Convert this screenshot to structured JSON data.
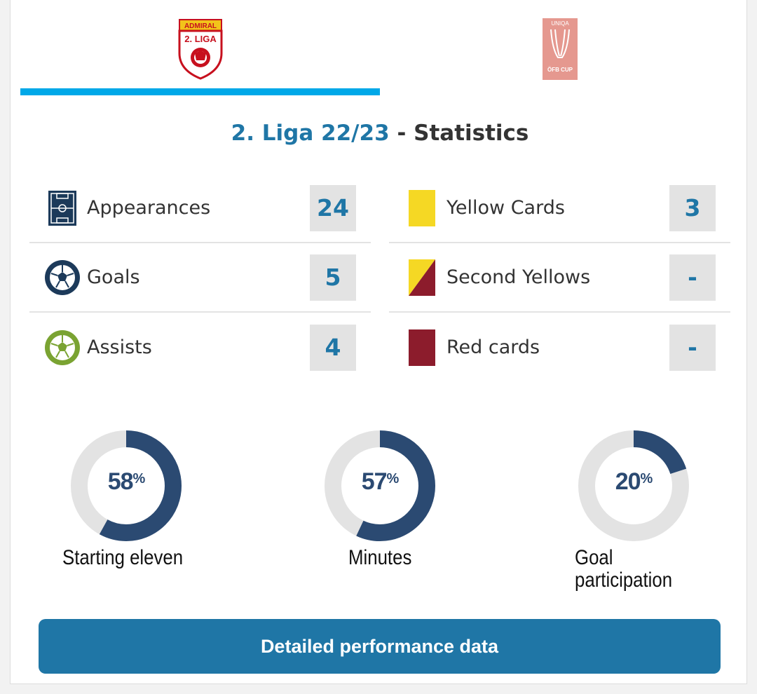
{
  "tabs": [
    {
      "name": "2. Liga",
      "logo_text_top": "ADMIRAL",
      "logo_text_main": "2. LIGA",
      "active": true
    },
    {
      "name": "UNIQA ÖFB Cup",
      "logo_text_top": "UNIQA",
      "logo_text_main": "ÖFB CUP",
      "active": false
    }
  ],
  "title": {
    "competition": "2. Liga 22/23",
    "separator": "-",
    "word": "Statistics"
  },
  "stats_left": [
    {
      "label": "Appearances",
      "value": "24",
      "icon": "pitch-icon"
    },
    {
      "label": "Goals",
      "value": "5",
      "icon": "ball-icon"
    },
    {
      "label": "Assists",
      "value": "4",
      "icon": "assist-ball-icon"
    }
  ],
  "stats_right": [
    {
      "label": "Yellow Cards",
      "value": "3",
      "icon": "yellow-card-icon"
    },
    {
      "label": "Second Yellows",
      "value": "-",
      "icon": "second-yellow-icon"
    },
    {
      "label": "Red cards",
      "value": "-",
      "icon": "red-card-icon"
    }
  ],
  "donuts": [
    {
      "label": "Starting eleven",
      "percent": 58,
      "percent_text": "58",
      "sign": "%"
    },
    {
      "label": "Minutes",
      "percent": 57,
      "percent_text": "57",
      "sign": "%"
    },
    {
      "label": "Goal participation",
      "percent": 20,
      "percent_text": "20",
      "sign": "%"
    }
  ],
  "button": {
    "label": "Detailed performance data"
  },
  "colors": {
    "accent": "#1f76a6",
    "tab_underline": "#00a8e8",
    "donut_fill": "#2b4a72",
    "donut_track": "#e3e3e3",
    "yellow": "#f5d824",
    "red": "#8c1c2c",
    "assist_green": "#7aa332"
  }
}
